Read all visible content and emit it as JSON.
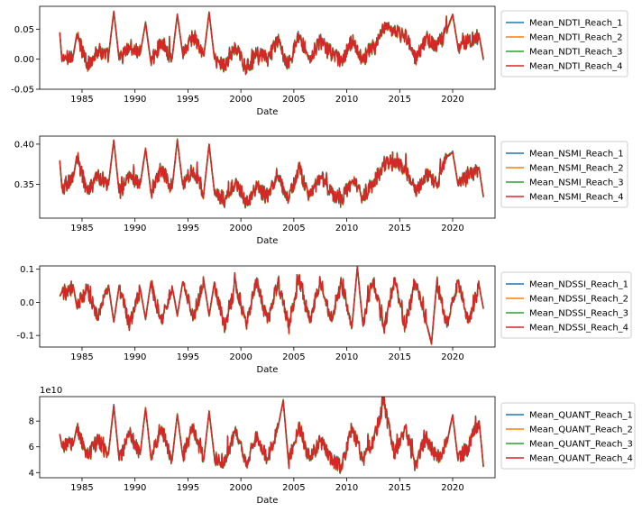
{
  "colors": {
    "series": [
      "#1f77b4",
      "#ff7f0e",
      "#2ca02c",
      "#d62728"
    ]
  },
  "chart_data": [
    {
      "type": "line",
      "xlabel": "Date",
      "ylabel": "",
      "xlim": [
        1981.0,
        2024.0
      ],
      "ylim": [
        -0.05,
        0.088
      ],
      "xticks": [
        "1985",
        "1990",
        "1995",
        "2000",
        "2005",
        "2010",
        "2015",
        "2020"
      ],
      "yticks": [
        "-0.05",
        "0.00",
        "0.05"
      ],
      "ytick_values": [
        -0.05,
        0.0,
        0.05
      ],
      "legend_position": "outside-right",
      "series": [
        {
          "name": "Mean_NDTI_Reach_1"
        },
        {
          "name": "Mean_NDTI_Reach_2"
        },
        {
          "name": "Mean_NDTI_Reach_3"
        },
        {
          "name": "Mean_NDTI_Reach_4"
        }
      ],
      "x": [
        1982.9,
        1983.1,
        1984.2,
        1984.5,
        1985.5,
        1986.5,
        1987.5,
        1988.0,
        1988.5,
        1989.5,
        1990.5,
        1991.0,
        1991.5,
        1992.5,
        1993.5,
        1994.0,
        1994.5,
        1995.5,
        1996.5,
        1997.0,
        1997.5,
        1998.5,
        1999.5,
        2000.5,
        2001.5,
        2002.5,
        2003.5,
        2004.5,
        2005.5,
        2006.5,
        2007.5,
        2008.5,
        2009.5,
        2010.5,
        2011.5,
        2012.5,
        2013.5,
        2014.5,
        2015.5,
        2016.5,
        2017.5,
        2018.5,
        2019.5,
        2020.0,
        2020.5,
        2021.5,
        2022.5,
        2022.9
      ],
      "values": [
        0.045,
        -0.002,
        0.008,
        0.04,
        -0.01,
        0.015,
        0.005,
        0.08,
        0.0,
        0.02,
        0.01,
        0.06,
        -0.005,
        0.03,
        0.0,
        0.075,
        0.01,
        0.04,
        0.005,
        0.078,
        0.0,
        -0.01,
        0.02,
        -0.015,
        0.01,
        0.0,
        0.03,
        -0.01,
        0.04,
        0.0,
        0.03,
        0.01,
        -0.005,
        0.03,
        0.0,
        0.02,
        0.05,
        0.045,
        0.04,
        0.0,
        0.035,
        0.02,
        0.05,
        0.075,
        0.02,
        0.03,
        0.04,
        0.0
      ]
    },
    {
      "type": "line",
      "xlabel": "Date",
      "ylabel": "",
      "xlim": [
        1981.0,
        2024.0
      ],
      "ylim": [
        0.308,
        0.41
      ],
      "xticks": [
        "1985",
        "1990",
        "1995",
        "2000",
        "2005",
        "2010",
        "2015",
        "2020"
      ],
      "yticks": [
        "0.35",
        "0.40"
      ],
      "ytick_values": [
        0.35,
        0.4
      ],
      "legend_position": "outside-right",
      "series": [
        {
          "name": "Mean_NSMI_Reach_1"
        },
        {
          "name": "Mean_NSMI_Reach_2"
        },
        {
          "name": "Mean_NSMI_Reach_3"
        },
        {
          "name": "Mean_NSMI_Reach_4"
        }
      ],
      "x": [
        1982.9,
        1983.1,
        1984.2,
        1984.5,
        1985.5,
        1986.5,
        1987.5,
        1988.0,
        1988.5,
        1989.5,
        1990.5,
        1991.0,
        1991.5,
        1992.5,
        1993.5,
        1994.0,
        1994.5,
        1995.5,
        1996.5,
        1997.0,
        1997.5,
        1998.5,
        1999.5,
        2000.5,
        2001.5,
        2002.5,
        2003.5,
        2004.5,
        2005.5,
        2006.5,
        2007.5,
        2008.5,
        2009.5,
        2010.5,
        2011.5,
        2012.5,
        2013.5,
        2014.5,
        2015.5,
        2016.5,
        2017.5,
        2018.5,
        2019.5,
        2020.0,
        2020.5,
        2021.5,
        2022.5,
        2022.9
      ],
      "values": [
        0.38,
        0.345,
        0.36,
        0.385,
        0.34,
        0.36,
        0.35,
        0.405,
        0.34,
        0.36,
        0.35,
        0.395,
        0.34,
        0.37,
        0.345,
        0.405,
        0.35,
        0.37,
        0.34,
        0.4,
        0.34,
        0.33,
        0.355,
        0.325,
        0.345,
        0.335,
        0.36,
        0.33,
        0.37,
        0.335,
        0.36,
        0.34,
        0.33,
        0.355,
        0.335,
        0.35,
        0.375,
        0.38,
        0.37,
        0.34,
        0.365,
        0.35,
        0.385,
        0.39,
        0.35,
        0.36,
        0.37,
        0.335
      ]
    },
    {
      "type": "line",
      "xlabel": "Date",
      "ylabel": "",
      "xlim": [
        1981.0,
        2024.0
      ],
      "ylim": [
        -0.135,
        0.11
      ],
      "xticks": [
        "1985",
        "1990",
        "1995",
        "2000",
        "2005",
        "2010",
        "2015",
        "2020"
      ],
      "yticks": [
        "-0.1",
        "0.0",
        "0.1"
      ],
      "ytick_values": [
        -0.1,
        0.0,
        0.1
      ],
      "legend_position": "outside-right",
      "series": [
        {
          "name": "Mean_NDSSI_Reach_1"
        },
        {
          "name": "Mean_NDSSI_Reach_2"
        },
        {
          "name": "Mean_NDSSI_Reach_3"
        },
        {
          "name": "Mean_NDSSI_Reach_4"
        }
      ],
      "x": [
        1982.9,
        1983.1,
        1984.2,
        1984.5,
        1985.5,
        1986.5,
        1987.5,
        1988.0,
        1988.5,
        1989.5,
        1990.5,
        1991.0,
        1991.5,
        1992.5,
        1993.5,
        1994.0,
        1994.5,
        1995.5,
        1996.5,
        1997.0,
        1997.5,
        1998.5,
        1999.5,
        2000.5,
        2001.5,
        2002.5,
        2003.5,
        2004.5,
        2005.5,
        2006.5,
        2007.5,
        2008.5,
        2009.5,
        2010.5,
        2011.0,
        2011.5,
        2012.5,
        2013.5,
        2014.5,
        2015.5,
        2016.5,
        2017.5,
        2018.0,
        2018.5,
        2019.5,
        2020.5,
        2021.5,
        2022.5,
        2022.9
      ],
      "values": [
        0.02,
        0.03,
        0.045,
        -0.01,
        0.04,
        -0.04,
        0.05,
        -0.06,
        0.05,
        -0.07,
        0.04,
        -0.05,
        0.06,
        -0.06,
        0.05,
        -0.04,
        0.06,
        -0.05,
        0.065,
        -0.04,
        0.06,
        -0.08,
        0.06,
        -0.07,
        0.07,
        -0.06,
        0.065,
        -0.07,
        0.07,
        -0.06,
        0.065,
        -0.05,
        0.06,
        -0.07,
        0.105,
        -0.06,
        0.07,
        -0.08,
        0.07,
        -0.07,
        0.06,
        -0.06,
        -0.125,
        0.06,
        -0.07,
        0.065,
        -0.06,
        0.05,
        -0.02
      ]
    },
    {
      "type": "line",
      "xlabel": "Date",
      "ylabel": "",
      "offset_text": "1e10",
      "xlim": [
        1981.0,
        2024.0
      ],
      "ylim": [
        3.6,
        9.9
      ],
      "xticks": [
        "1985",
        "1990",
        "1995",
        "2000",
        "2005",
        "2010",
        "2015",
        "2020"
      ],
      "yticks": [
        "4",
        "6",
        "8"
      ],
      "ytick_values": [
        4,
        6,
        8
      ],
      "legend_position": "outside-right",
      "series": [
        {
          "name": "Mean_QUANT_Reach_1"
        },
        {
          "name": "Mean_QUANT_Reach_2"
        },
        {
          "name": "Mean_QUANT_Reach_3"
        },
        {
          "name": "Mean_QUANT_Reach_4"
        }
      ],
      "x": [
        1982.9,
        1983.1,
        1984.2,
        1984.5,
        1985.5,
        1986.5,
        1987.5,
        1988.0,
        1988.5,
        1989.5,
        1990.5,
        1991.0,
        1991.5,
        1992.5,
        1993.5,
        1994.0,
        1994.5,
        1995.5,
        1996.5,
        1997.0,
        1997.5,
        1998.5,
        1999.5,
        2000.5,
        2001.5,
        2002.5,
        2003.5,
        2004.0,
        2004.5,
        2005.5,
        2006.5,
        2007.5,
        2008.5,
        2009.5,
        2010.5,
        2011.5,
        2012.5,
        2013.5,
        2014.5,
        2015.5,
        2016.5,
        2017.5,
        2018.5,
        2019.5,
        2020.0,
        2020.5,
        2021.5,
        2022.5,
        2022.9
      ],
      "values": [
        7.0,
        6.0,
        6.3,
        7.5,
        5.2,
        6.5,
        5.5,
        9.2,
        5.0,
        7.0,
        5.5,
        9.0,
        5.2,
        7.5,
        5.0,
        8.5,
        5.3,
        7.5,
        5.0,
        8.8,
        5.2,
        4.8,
        7.5,
        4.5,
        7.0,
        5.0,
        7.5,
        9.6,
        4.8,
        7.5,
        5.0,
        6.5,
        5.0,
        4.5,
        7.5,
        5.0,
        6.5,
        9.5,
        5.5,
        7.5,
        4.5,
        6.8,
        5.0,
        6.5,
        8.5,
        5.0,
        6.0,
        8.0,
        4.5
      ]
    }
  ]
}
